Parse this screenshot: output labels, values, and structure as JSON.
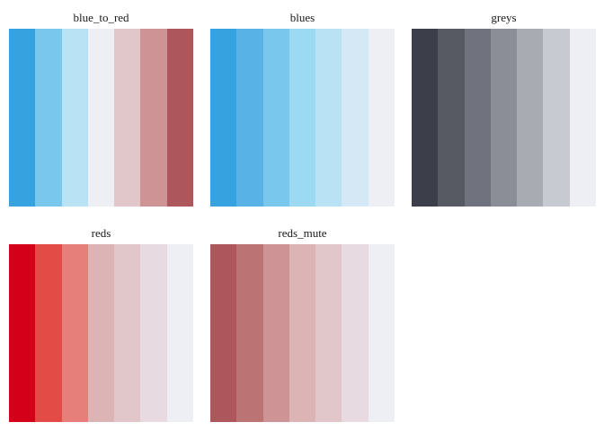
{
  "chart_data": [
    {
      "type": "heatmap",
      "title": "blue_to_red",
      "colors": [
        "#36a3e0",
        "#79c7ec",
        "#b9e3f5",
        "#eeeff5",
        "#e2c7ca",
        "#cd9395",
        "#ad575d"
      ]
    },
    {
      "type": "heatmap",
      "title": "blues",
      "colors": [
        "#36a3e0",
        "#58b2e5",
        "#79c7ec",
        "#9cd9f2",
        "#b9e3f5",
        "#d4e8f5",
        "#eeeff5"
      ]
    },
    {
      "type": "heatmap",
      "title": "greys",
      "colors": [
        "#3c3e49",
        "#575963",
        "#70737d",
        "#8b8e97",
        "#a9abb3",
        "#c8cad1",
        "#eeeff5"
      ]
    },
    {
      "type": "heatmap",
      "title": "reds",
      "colors": [
        "#d4001a",
        "#e34b46",
        "#e67f7a",
        "#dcb4b5",
        "#e2c7ca",
        "#e7dbe1",
        "#eeeff5"
      ]
    },
    {
      "type": "heatmap",
      "title": "reds_mute",
      "colors": [
        "#ad575d",
        "#bc7374",
        "#cd9395",
        "#dcb4b5",
        "#e2c7ca",
        "#e7dbe1",
        "#eeeff5"
      ]
    }
  ]
}
